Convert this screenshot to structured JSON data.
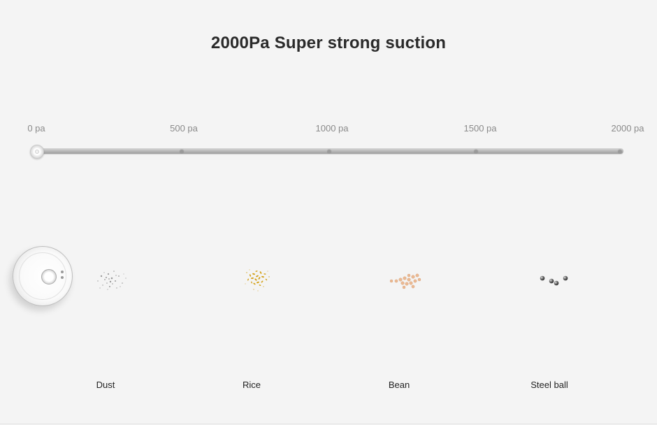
{
  "title": "2000Pa Super strong suction",
  "scale": {
    "ticks": [
      "0 pa",
      "500 pa",
      "1000 pa",
      "1500 pa",
      "2000 pa"
    ],
    "current_value_pa": 0,
    "max_value_pa": 2000
  },
  "items": [
    {
      "label": "Dust",
      "pa": 250,
      "color": "#9a9a9a"
    },
    {
      "label": "Rice",
      "pa": 750,
      "color": "#d4a21a"
    },
    {
      "label": "Bean",
      "pa": 1250,
      "color": "#e8b48c"
    },
    {
      "label": "Steel ball",
      "pa": 1750,
      "color": "#5a5a5a"
    }
  ]
}
